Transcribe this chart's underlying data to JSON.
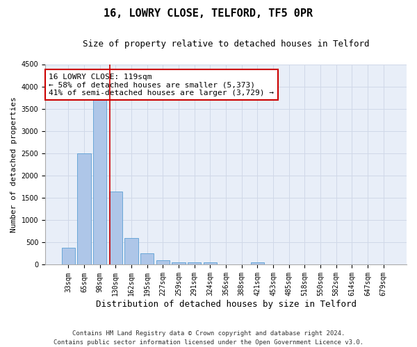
{
  "title": "16, LOWRY CLOSE, TELFORD, TF5 0PR",
  "subtitle": "Size of property relative to detached houses in Telford",
  "xlabel": "Distribution of detached houses by size in Telford",
  "ylabel": "Number of detached properties",
  "categories": [
    "33sqm",
    "65sqm",
    "98sqm",
    "130sqm",
    "162sqm",
    "195sqm",
    "227sqm",
    "259sqm",
    "291sqm",
    "324sqm",
    "356sqm",
    "388sqm",
    "421sqm",
    "453sqm",
    "485sqm",
    "518sqm",
    "550sqm",
    "582sqm",
    "614sqm",
    "647sqm",
    "679sqm"
  ],
  "values": [
    380,
    2500,
    3730,
    1650,
    600,
    250,
    100,
    60,
    50,
    50,
    0,
    0,
    60,
    0,
    0,
    0,
    0,
    0,
    0,
    0,
    0
  ],
  "bar_color": "#aec6e8",
  "bar_edgecolor": "#5a9fd4",
  "property_line_x": 2.65,
  "property_line_color": "#cc0000",
  "annotation_text": "16 LOWRY CLOSE: 119sqm\n← 58% of detached houses are smaller (5,373)\n41% of semi-detached houses are larger (3,729) →",
  "annotation_box_color": "#cc0000",
  "ylim": [
    0,
    4500
  ],
  "yticks": [
    0,
    500,
    1000,
    1500,
    2000,
    2500,
    3000,
    3500,
    4000,
    4500
  ],
  "grid_color": "#d0d8e8",
  "background_color": "#e8eef8",
  "footer": "Contains HM Land Registry data © Crown copyright and database right 2024.\nContains public sector information licensed under the Open Government Licence v3.0.",
  "title_fontsize": 11,
  "subtitle_fontsize": 9,
  "xlabel_fontsize": 9,
  "ylabel_fontsize": 8,
  "tick_fontsize": 7,
  "annotation_fontsize": 8,
  "footer_fontsize": 6.5
}
